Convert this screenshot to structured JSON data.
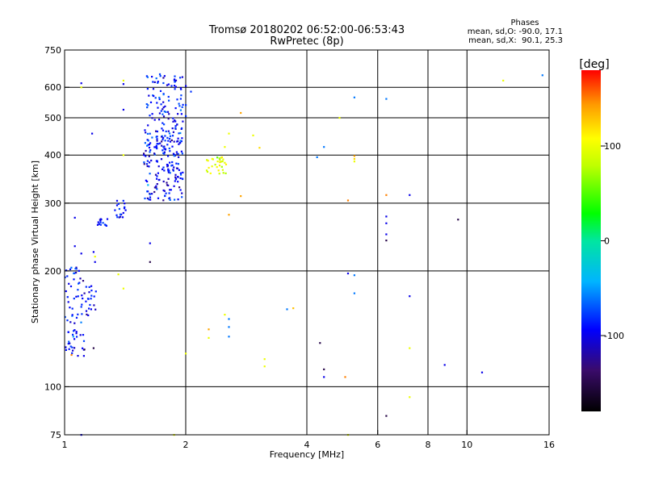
{
  "chart_data": {
    "type": "scatter",
    "title": "Tromsø 20180202 06:52:00-06:53:43",
    "subtitle": "RwPretec (8p)",
    "xlabel": "Frequency [MHz]",
    "ylabel": "Stationary phase Virtual Height [km]",
    "xscale": "log",
    "yscale": "log",
    "xlim": [
      1,
      16
    ],
    "ylim": [
      75,
      750
    ],
    "grid": true,
    "x_ticks": [
      {
        "value": 1,
        "label": "1"
      },
      {
        "value": 2,
        "label": "2"
      },
      {
        "value": 4,
        "label": "4"
      },
      {
        "value": 6,
        "label": "6"
      },
      {
        "value": 8,
        "label": "8"
      },
      {
        "value": 10,
        "label": "10"
      },
      {
        "value": 16,
        "label": "16"
      }
    ],
    "y_ticks": [
      {
        "value": 75,
        "label": "75"
      },
      {
        "value": 100,
        "label": "100"
      },
      {
        "value": 200,
        "label": "200"
      },
      {
        "value": 300,
        "label": "300"
      },
      {
        "value": 400,
        "label": "400"
      },
      {
        "value": 500,
        "label": "500"
      },
      {
        "value": 600,
        "label": "600"
      },
      {
        "value": 750,
        "label": "750"
      }
    ],
    "stats": {
      "title": "Phases",
      "line_o": "mean, sd,O: -90.0, 17.1",
      "line_x": "mean, sd,X:  90.1, 25.3"
    },
    "colorbar": {
      "label": "[deg]",
      "range": [
        -180,
        180
      ],
      "ticks": [
        {
          "value": 100,
          "label": "100"
        },
        {
          "value": 0,
          "label": "0"
        },
        {
          "value": -100,
          "label": "-100"
        }
      ]
    },
    "clusters": [
      {
        "x_range": [
          1.0,
          1.12
        ],
        "y_range": [
          120,
          205
        ],
        "n": 70,
        "phase": -90,
        "sd": 15
      },
      {
        "x_range": [
          1.12,
          1.2
        ],
        "y_range": [
          150,
          185
        ],
        "n": 20,
        "phase": -90,
        "sd": 15
      },
      {
        "x_range": [
          1.2,
          1.28
        ],
        "y_range": [
          262,
          275
        ],
        "n": 14,
        "phase": -95,
        "sd": 12
      },
      {
        "x_range": [
          1.33,
          1.42
        ],
        "y_range": [
          275,
          305
        ],
        "n": 18,
        "phase": -90,
        "sd": 12
      },
      {
        "x_range": [
          1.57,
          1.97
        ],
        "y_range": [
          305,
          470
        ],
        "n": 200,
        "phase": -90,
        "sd": 18
      },
      {
        "x_range": [
          1.6,
          1.97
        ],
        "y_range": [
          470,
          650
        ],
        "n": 90,
        "phase": -92,
        "sd": 14
      },
      {
        "x_range": [
          2.25,
          2.52
        ],
        "y_range": [
          358,
          395
        ],
        "n": 30,
        "phase": 95,
        "sd": 18
      }
    ],
    "points": [
      {
        "x": 1.1,
        "y": 615,
        "phase": -100
      },
      {
        "x": 1.1,
        "y": 600,
        "phase": 100
      },
      {
        "x": 1.4,
        "y": 625,
        "phase": 100
      },
      {
        "x": 1.4,
        "y": 612,
        "phase": -100
      },
      {
        "x": 1.4,
        "y": 525,
        "phase": -100
      },
      {
        "x": 1.4,
        "y": 400,
        "phase": 100
      },
      {
        "x": 1.4,
        "y": 180,
        "phase": 100
      },
      {
        "x": 1.17,
        "y": 455,
        "phase": -100
      },
      {
        "x": 1.06,
        "y": 275,
        "phase": -100
      },
      {
        "x": 1.06,
        "y": 232,
        "phase": -100
      },
      {
        "x": 1.1,
        "y": 222,
        "phase": -100
      },
      {
        "x": 1.18,
        "y": 224,
        "phase": -100
      },
      {
        "x": 1.19,
        "y": 218,
        "phase": 100
      },
      {
        "x": 1.19,
        "y": 211,
        "phase": -100
      },
      {
        "x": 1.12,
        "y": 175,
        "phase": -120
      },
      {
        "x": 1.18,
        "y": 126,
        "phase": -150
      },
      {
        "x": 1.12,
        "y": 125,
        "phase": -150
      },
      {
        "x": 1.04,
        "y": 121,
        "phase": 150
      },
      {
        "x": 1.36,
        "y": 196,
        "phase": 100
      },
      {
        "x": 1.63,
        "y": 236,
        "phase": -100
      },
      {
        "x": 1.63,
        "y": 211,
        "phase": -150
      },
      {
        "x": 1.1,
        "y": 75,
        "phase": -100
      },
      {
        "x": 1.87,
        "y": 75,
        "phase": 100
      },
      {
        "x": 2.0,
        "y": 122,
        "phase": 100
      },
      {
        "x": 2.0,
        "y": 605,
        "phase": -100
      },
      {
        "x": 2.06,
        "y": 585,
        "phase": -80
      },
      {
        "x": 2.0,
        "y": 540,
        "phase": -80
      },
      {
        "x": 2.0,
        "y": 505,
        "phase": -80
      },
      {
        "x": 2.28,
        "y": 141,
        "phase": 140
      },
      {
        "x": 2.28,
        "y": 134,
        "phase": 100
      },
      {
        "x": 2.5,
        "y": 154,
        "phase": 100
      },
      {
        "x": 2.56,
        "y": 150,
        "phase": -60
      },
      {
        "x": 2.56,
        "y": 143,
        "phase": -60
      },
      {
        "x": 2.56,
        "y": 135,
        "phase": -60
      },
      {
        "x": 2.56,
        "y": 280,
        "phase": 140
      },
      {
        "x": 2.74,
        "y": 313,
        "phase": 140
      },
      {
        "x": 2.74,
        "y": 515,
        "phase": 140
      },
      {
        "x": 2.56,
        "y": 455,
        "phase": 100
      },
      {
        "x": 2.5,
        "y": 420,
        "phase": 100
      },
      {
        "x": 2.94,
        "y": 450,
        "phase": 100
      },
      {
        "x": 3.05,
        "y": 418,
        "phase": 120
      },
      {
        "x": 3.14,
        "y": 118,
        "phase": 100
      },
      {
        "x": 3.14,
        "y": 113,
        "phase": 100
      },
      {
        "x": 3.57,
        "y": 159,
        "phase": -60
      },
      {
        "x": 3.7,
        "y": 160,
        "phase": 130
      },
      {
        "x": 4.24,
        "y": 395,
        "phase": -60
      },
      {
        "x": 4.41,
        "y": 420,
        "phase": -60
      },
      {
        "x": 4.31,
        "y": 130,
        "phase": -150
      },
      {
        "x": 4.41,
        "y": 111,
        "phase": -150
      },
      {
        "x": 4.41,
        "y": 106,
        "phase": -100
      },
      {
        "x": 4.82,
        "y": 500,
        "phase": 100
      },
      {
        "x": 4.98,
        "y": 106,
        "phase": 150
      },
      {
        "x": 5.06,
        "y": 305,
        "phase": 150
      },
      {
        "x": 5.06,
        "y": 197,
        "phase": -100
      },
      {
        "x": 5.25,
        "y": 565,
        "phase": -60
      },
      {
        "x": 5.25,
        "y": 195,
        "phase": -60
      },
      {
        "x": 5.25,
        "y": 175,
        "phase": -60
      },
      {
        "x": 5.25,
        "y": 398,
        "phase": 140
      },
      {
        "x": 5.25,
        "y": 391,
        "phase": 120
      },
      {
        "x": 5.25,
        "y": 385,
        "phase": 100
      },
      {
        "x": 5.06,
        "y": 75,
        "phase": 100
      },
      {
        "x": 6.3,
        "y": 315,
        "phase": 150
      },
      {
        "x": 6.3,
        "y": 277,
        "phase": -100
      },
      {
        "x": 6.3,
        "y": 266,
        "phase": -100
      },
      {
        "x": 6.3,
        "y": 249,
        "phase": -100
      },
      {
        "x": 6.3,
        "y": 240,
        "phase": -150
      },
      {
        "x": 6.3,
        "y": 560,
        "phase": -60
      },
      {
        "x": 6.3,
        "y": 84,
        "phase": -150
      },
      {
        "x": 7.2,
        "y": 315,
        "phase": -100
      },
      {
        "x": 7.2,
        "y": 172,
        "phase": -100
      },
      {
        "x": 7.2,
        "y": 126,
        "phase": 100
      },
      {
        "x": 7.2,
        "y": 94,
        "phase": 100
      },
      {
        "x": 8.8,
        "y": 114,
        "phase": -100
      },
      {
        "x": 9.5,
        "y": 272,
        "phase": -150
      },
      {
        "x": 10.9,
        "y": 109,
        "phase": -100
      },
      {
        "x": 12.3,
        "y": 625,
        "phase": 100
      },
      {
        "x": 15.4,
        "y": 645,
        "phase": -60
      }
    ]
  }
}
